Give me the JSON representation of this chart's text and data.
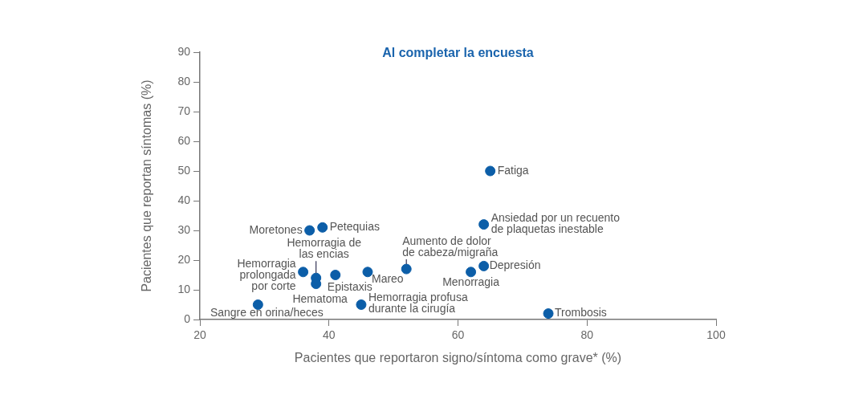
{
  "chart_data": {
    "type": "scatter",
    "title": "Al completar la encuesta",
    "xlabel": "Pacientes que reportaron signo/síntoma como grave* (%)",
    "ylabel": "Pacientes que reportan síntomas (%)",
    "series": [
      {
        "color": "#0c5ea8",
        "x": [
          65,
          64,
          39,
          37,
          36,
          38,
          38,
          41,
          46,
          52,
          62,
          64,
          29,
          45,
          74
        ],
        "values": [
          50,
          32,
          31,
          30,
          16,
          14,
          12,
          15,
          16,
          17,
          16,
          18,
          5,
          5,
          2
        ]
      }
    ],
    "annotations": [
      {
        "text": "Fatiga",
        "x": 65,
        "y": 50
      },
      {
        "text": "Ansiedad por un recuento\nde plaquetas inestable",
        "x": 64,
        "y": 32
      },
      {
        "text": "Petequias",
        "x": 39,
        "y": 31
      },
      {
        "text": "Moretones",
        "x": 37,
        "y": 30
      },
      {
        "text": "Hemorragia\nprolongada\npor corte",
        "x": 36,
        "y": 16
      },
      {
        "text": "Hemorragia de\nlas encias",
        "x": 38,
        "y": 14
      },
      {
        "text": "Hematoma",
        "x": 38,
        "y": 12
      },
      {
        "text": "Epistaxis",
        "x": 41,
        "y": 15
      },
      {
        "text": "Mareo",
        "x": 46,
        "y": 16
      },
      {
        "text": "Aumento de dolor\nde cabeza/migraña",
        "x": 52,
        "y": 17
      },
      {
        "text": "Menorragia",
        "x": 62,
        "y": 16
      },
      {
        "text": "Depresión",
        "x": 64,
        "y": 18
      },
      {
        "text": "Sangre en orina/heces",
        "x": 29,
        "y": 5
      },
      {
        "text": "Hemorragia profusa\ndurante la cirugía",
        "x": 45,
        "y": 5
      },
      {
        "text": "Trombosis",
        "x": 74,
        "y": 2
      }
    ],
    "xlim": [
      20,
      100
    ],
    "xticks": [
      20,
      40,
      60,
      80,
      100
    ],
    "ylim": [
      0,
      90
    ],
    "yticks": [
      0,
      10,
      20,
      30,
      40,
      50,
      60,
      70,
      80,
      90
    ],
    "grid": false,
    "legend": false,
    "marker": "circle"
  }
}
